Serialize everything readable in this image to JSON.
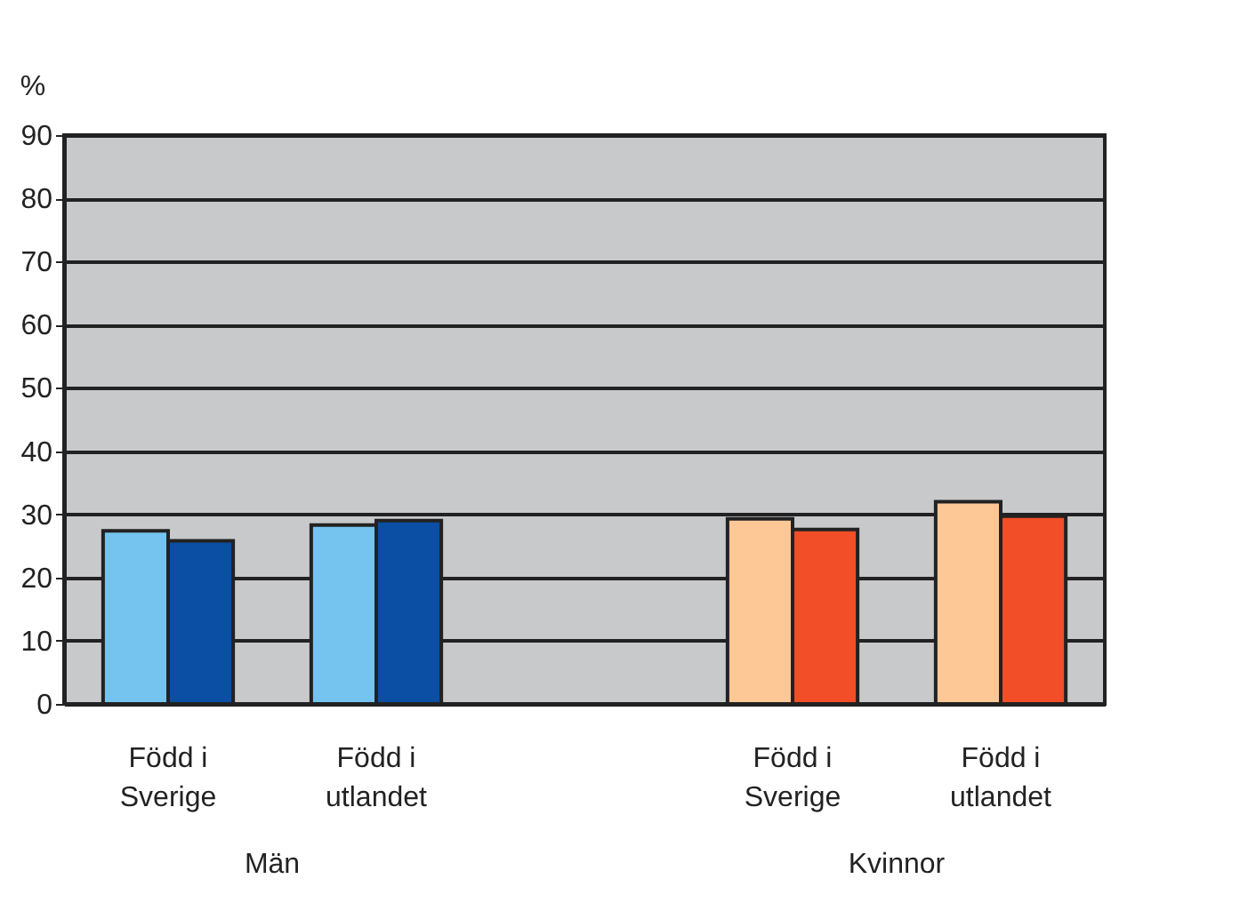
{
  "chart_data": {
    "type": "bar",
    "ylabel": "%",
    "categories": [
      "Född i\nSverige",
      "Född i\nutlandet",
      null,
      "Född i\nSverige",
      "Född i\nutlandet"
    ],
    "series": [
      {
        "colors": [
          "#74c4ef",
          "#74c4ef",
          null,
          "#fdc796",
          "#fdc796"
        ],
        "values": [
          27.4,
          28.3,
          null,
          29.3,
          32.0
        ]
      },
      {
        "colors": [
          "#0a4fa3",
          "#0a4fa3",
          null,
          "#f24e27",
          "#f24e27"
        ],
        "values": [
          25.8,
          29.0,
          null,
          27.6,
          29.7
        ]
      }
    ],
    "annotations": [
      "Män",
      "Kvinnor"
    ],
    "ylim": [
      0,
      90
    ],
    "yticks": [
      0,
      10,
      20,
      30,
      40,
      50,
      60,
      70,
      80,
      90
    ],
    "grid": "y",
    "legend": false
  }
}
